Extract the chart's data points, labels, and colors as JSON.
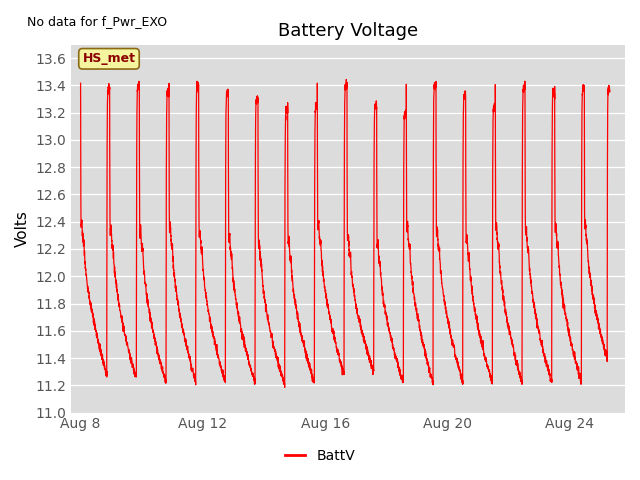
{
  "title": "Battery Voltage",
  "ylabel": "Volts",
  "note_text": "No data for f_Pwr_EXO",
  "legend_label": "BattV",
  "line_color": "#FF0000",
  "bg_color": "#DCDCDC",
  "ylim": [
    11.0,
    13.7
  ],
  "yticks": [
    11.0,
    11.2,
    11.4,
    11.6,
    11.8,
    12.0,
    12.2,
    12.4,
    12.6,
    12.8,
    13.0,
    13.2,
    13.4,
    13.6
  ],
  "hs_met_label": "HS_met",
  "xtick_labels": [
    "Aug 8",
    "Aug 12",
    "Aug 16",
    "Aug 20",
    "Aug 24"
  ],
  "xtick_positions": [
    0,
    4,
    8,
    12,
    16
  ],
  "xlim": [
    -0.3,
    17.8
  ],
  "ylim_low": 11.0,
  "ylim_high": 13.7
}
